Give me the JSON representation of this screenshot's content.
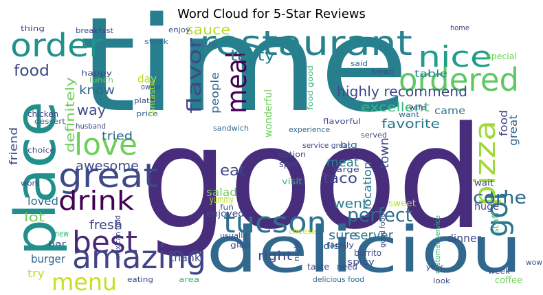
{
  "chart_data": {
    "type": "wordcloud",
    "title": "Word Cloud for 5-Star Reviews",
    "words": [
      {
        "text": "good",
        "color": "#472d7b"
      },
      {
        "text": "time",
        "color": "#277f8e"
      },
      {
        "text": "deliciou",
        "color": "#31688e"
      },
      {
        "text": "place",
        "color": "#21908d"
      },
      {
        "text": "restaurant",
        "color": "#26828e"
      },
      {
        "text": "ordered",
        "color": "#5ec962"
      },
      {
        "text": "nice",
        "color": "#1f9e89"
      },
      {
        "text": "order",
        "color": "#21918c"
      },
      {
        "text": "great",
        "color": "#3e4989"
      },
      {
        "text": "love",
        "color": "#6ece58"
      },
      {
        "text": "drink",
        "color": "#440154"
      },
      {
        "text": "best",
        "color": "#482878"
      },
      {
        "text": "amazing",
        "color": "#414487"
      },
      {
        "text": "menu",
        "color": "#c8e020"
      },
      {
        "text": "tucson",
        "color": "#2c728e"
      },
      {
        "text": "got",
        "color": "#2a788e"
      },
      {
        "text": "pizza",
        "color": "#a0da39"
      },
      {
        "text": "come",
        "color": "#31688e"
      },
      {
        "text": "meal",
        "color": "#440154"
      },
      {
        "text": "flavor",
        "color": "#3e4989"
      },
      {
        "text": "perfect",
        "color": "#2d708e"
      },
      {
        "text": "tasty",
        "color": "#26828e"
      },
      {
        "text": "sauce",
        "color": "#b5de2b"
      },
      {
        "text": "food",
        "color": "#3e4989"
      },
      {
        "text": "highly recommend",
        "color": "#3e4989"
      },
      {
        "text": "excellent",
        "color": "#35b779"
      },
      {
        "text": "favorite",
        "color": "#2a788e"
      },
      {
        "text": "came",
        "color": "#2a788e"
      },
      {
        "text": "table",
        "color": "#26828e"
      },
      {
        "text": "know",
        "color": "#31688e"
      },
      {
        "text": "way",
        "color": "#3e4989"
      },
      {
        "text": "tried",
        "color": "#31688e"
      },
      {
        "text": "awesome",
        "color": "#3e4989"
      },
      {
        "text": "definitely",
        "color": "#6ece58"
      },
      {
        "text": "friend",
        "color": "#3e4989"
      },
      {
        "text": "people",
        "color": "#31688e"
      },
      {
        "text": "day",
        "color": "#b5de2b"
      },
      {
        "text": "eat",
        "color": "#3e4989"
      },
      {
        "text": "salad",
        "color": "#6ece58"
      },
      {
        "text": "meat",
        "color": "#26828e"
      },
      {
        "text": "taco",
        "color": "#3e4989"
      },
      {
        "text": "location",
        "color": "#2a788e"
      },
      {
        "text": "town",
        "color": "#3e4989"
      },
      {
        "text": "went",
        "color": "#2a788e"
      },
      {
        "text": "sure",
        "color": "#31688e"
      },
      {
        "text": "server",
        "color": "#2a788e"
      },
      {
        "text": "right",
        "color": "#3e4989"
      },
      {
        "text": "thank",
        "color": "#3e4989"
      },
      {
        "text": "burger",
        "color": "#31688e"
      },
      {
        "text": "try",
        "color": "#b5de2b"
      },
      {
        "text": "loved",
        "color": "#31688e"
      },
      {
        "text": "lot",
        "color": "#6ece58"
      },
      {
        "text": "fresh",
        "color": "#3e4989"
      },
      {
        "text": "dinner",
        "color": "#3e4989"
      },
      {
        "text": "great",
        "color": "#31688e"
      },
      {
        "text": "food",
        "color": "#3e4989"
      },
      {
        "text": "thing",
        "color": "#3e4989"
      },
      {
        "text": "breakfast",
        "color": "#3e4989"
      },
      {
        "text": "steak",
        "color": "#31688e"
      },
      {
        "text": "enjoy",
        "color": "#3e4989"
      },
      {
        "text": "little",
        "color": "#31688e"
      },
      {
        "text": "home",
        "color": "#3e4989"
      },
      {
        "text": "special",
        "color": "#6ece58"
      },
      {
        "text": "wait",
        "color": "#3e4989"
      },
      {
        "text": "staff",
        "color": "#35b779"
      },
      {
        "text": "huge",
        "color": "#3e4989"
      },
      {
        "text": "dish",
        "color": "#31688e"
      },
      {
        "text": "coffee",
        "color": "#6ece58"
      },
      {
        "text": "bar",
        "color": "#3e4989"
      },
      {
        "text": "chicken",
        "color": "#3e4989"
      },
      {
        "text": "experience",
        "color": "#31688e"
      },
      {
        "text": "service great",
        "color": "#3e4989"
      },
      {
        "text": "sandwich",
        "color": "#31688e"
      },
      {
        "text": "option",
        "color": "#3e4989"
      },
      {
        "text": "visit",
        "color": "#35b779"
      },
      {
        "text": "yummy",
        "color": "#b5de2b"
      },
      {
        "text": "spot",
        "color": "#3e4989"
      },
      {
        "text": "big",
        "color": "#31688e"
      },
      {
        "text": "served",
        "color": "#3e4989"
      },
      {
        "text": "want",
        "color": "#31688e"
      },
      {
        "text": "wife",
        "color": "#3e4989"
      },
      {
        "text": "bread",
        "color": "#3e4989"
      },
      {
        "text": "said",
        "color": "#31688e"
      },
      {
        "text": "happy",
        "color": "#3e4989"
      },
      {
        "text": "lunch",
        "color": "#6ece58"
      },
      {
        "text": "plate",
        "color": "#3e4989"
      },
      {
        "text": "owner",
        "color": "#3e4989"
      },
      {
        "text": "price",
        "color": "#31688e"
      },
      {
        "text": "husband",
        "color": "#3e4989"
      },
      {
        "text": "dessert",
        "color": "#31688e"
      },
      {
        "text": "choice",
        "color": "#3e4989"
      },
      {
        "text": "work",
        "color": "#3e4989"
      },
      {
        "text": "new",
        "color": "#35b779"
      },
      {
        "text": "eating",
        "color": "#3e4989"
      },
      {
        "text": "area",
        "color": "#35b779"
      },
      {
        "text": "customer service",
        "color": "#35b779"
      },
      {
        "text": "burrito",
        "color": "#3e4989"
      },
      {
        "text": "spicy",
        "color": "#3e4989"
      },
      {
        "text": "taste",
        "color": "#3e4989"
      },
      {
        "text": "need",
        "color": "#3e4989"
      },
      {
        "text": "delicious food",
        "color": "#31688e"
      },
      {
        "text": "year",
        "color": "#3e4989"
      },
      {
        "text": "week",
        "color": "#3e4989"
      },
      {
        "text": "wow",
        "color": "#3e4989"
      },
      {
        "text": "look",
        "color": "#3e4989"
      },
      {
        "text": "good food",
        "color": "#3e4989"
      },
      {
        "text": "night",
        "color": "#3e4989"
      },
      {
        "text": "glad",
        "color": "#3e4989"
      },
      {
        "text": "usually",
        "color": "#3e4989"
      },
      {
        "text": "family",
        "color": "#3e4989"
      },
      {
        "text": "fun",
        "color": "#3e4989"
      },
      {
        "text": "sweet",
        "color": "#b5de2b"
      },
      {
        "text": "enjoyed",
        "color": "#3e4989"
      },
      {
        "text": "wonderful",
        "color": "#6ece58"
      },
      {
        "text": "flavorful",
        "color": "#3e4989"
      },
      {
        "text": "food good",
        "color": "#35b779"
      },
      {
        "text": "fantastic",
        "color": "#b5de2b"
      },
      {
        "text": "large",
        "color": "#3e4989"
      },
      {
        "text": "cheese",
        "color": "#c8e020"
      },
      {
        "text": "mexican food",
        "color": "#3e4989"
      }
    ]
  }
}
